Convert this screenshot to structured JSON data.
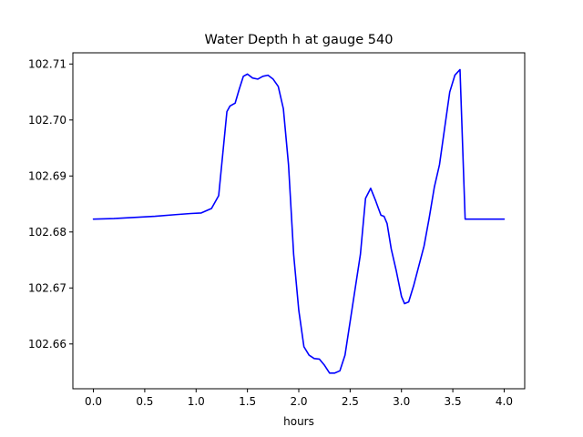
{
  "chart_data": {
    "type": "line",
    "title": "Water Depth h at gauge 540",
    "xlabel": "hours",
    "ylabel": "",
    "xlim": [
      -0.2,
      4.2
    ],
    "ylim": [
      102.652,
      102.712
    ],
    "xticks": [
      0.0,
      0.5,
      1.0,
      1.5,
      2.0,
      2.5,
      3.0,
      3.5,
      4.0
    ],
    "xtick_labels": [
      "0.0",
      "0.5",
      "1.0",
      "1.5",
      "2.0",
      "2.5",
      "3.0",
      "3.5",
      "4.0"
    ],
    "yticks": [
      102.66,
      102.67,
      102.68,
      102.69,
      102.7,
      102.71
    ],
    "ytick_labels": [
      "102.66",
      "102.67",
      "102.68",
      "102.69",
      "102.70",
      "102.71"
    ],
    "grid": false,
    "series": [
      {
        "color": "#0000ff",
        "x": [
          0.0,
          0.2,
          0.4,
          0.6,
          0.8,
          0.95,
          1.05,
          1.15,
          1.22,
          1.26,
          1.3,
          1.33,
          1.38,
          1.42,
          1.46,
          1.5,
          1.55,
          1.6,
          1.65,
          1.7,
          1.75,
          1.8,
          1.85,
          1.9,
          1.95,
          2.0,
          2.05,
          2.1,
          2.15,
          2.2,
          2.25,
          2.3,
          2.35,
          2.4,
          2.45,
          2.5,
          2.55,
          2.6,
          2.65,
          2.7,
          2.75,
          2.8,
          2.83,
          2.86,
          2.9,
          2.95,
          3.0,
          3.03,
          3.07,
          3.12,
          3.17,
          3.22,
          3.27,
          3.32,
          3.37,
          3.42,
          3.47,
          3.52,
          3.57,
          3.62,
          3.67,
          3.72,
          3.77,
          3.82,
          3.87,
          3.92,
          3.97,
          4.0
        ],
        "values": [
          102.6823,
          102.6824,
          102.6826,
          102.6828,
          102.6831,
          102.6833,
          102.6834,
          102.6842,
          102.6865,
          102.694,
          102.7015,
          102.7025,
          102.703,
          102.7055,
          102.7078,
          102.7082,
          102.7075,
          102.7073,
          102.7078,
          102.708,
          102.7073,
          102.706,
          102.702,
          102.692,
          102.676,
          102.666,
          102.6595,
          102.658,
          102.6574,
          102.6573,
          102.6562,
          102.6548,
          102.6548,
          102.6552,
          102.658,
          102.664,
          102.67,
          102.676,
          102.686,
          102.6878,
          102.6855,
          102.683,
          102.6828,
          102.6815,
          102.677,
          102.673,
          102.6685,
          102.6672,
          102.6675,
          102.6705,
          102.674,
          102.6775,
          102.6825,
          102.688,
          102.692,
          102.6985,
          102.705,
          102.708,
          102.709,
          102.6823,
          102.6823,
          102.6823,
          102.6823,
          102.6823,
          102.6823,
          102.6823,
          102.6823,
          102.6823
        ]
      }
    ]
  }
}
